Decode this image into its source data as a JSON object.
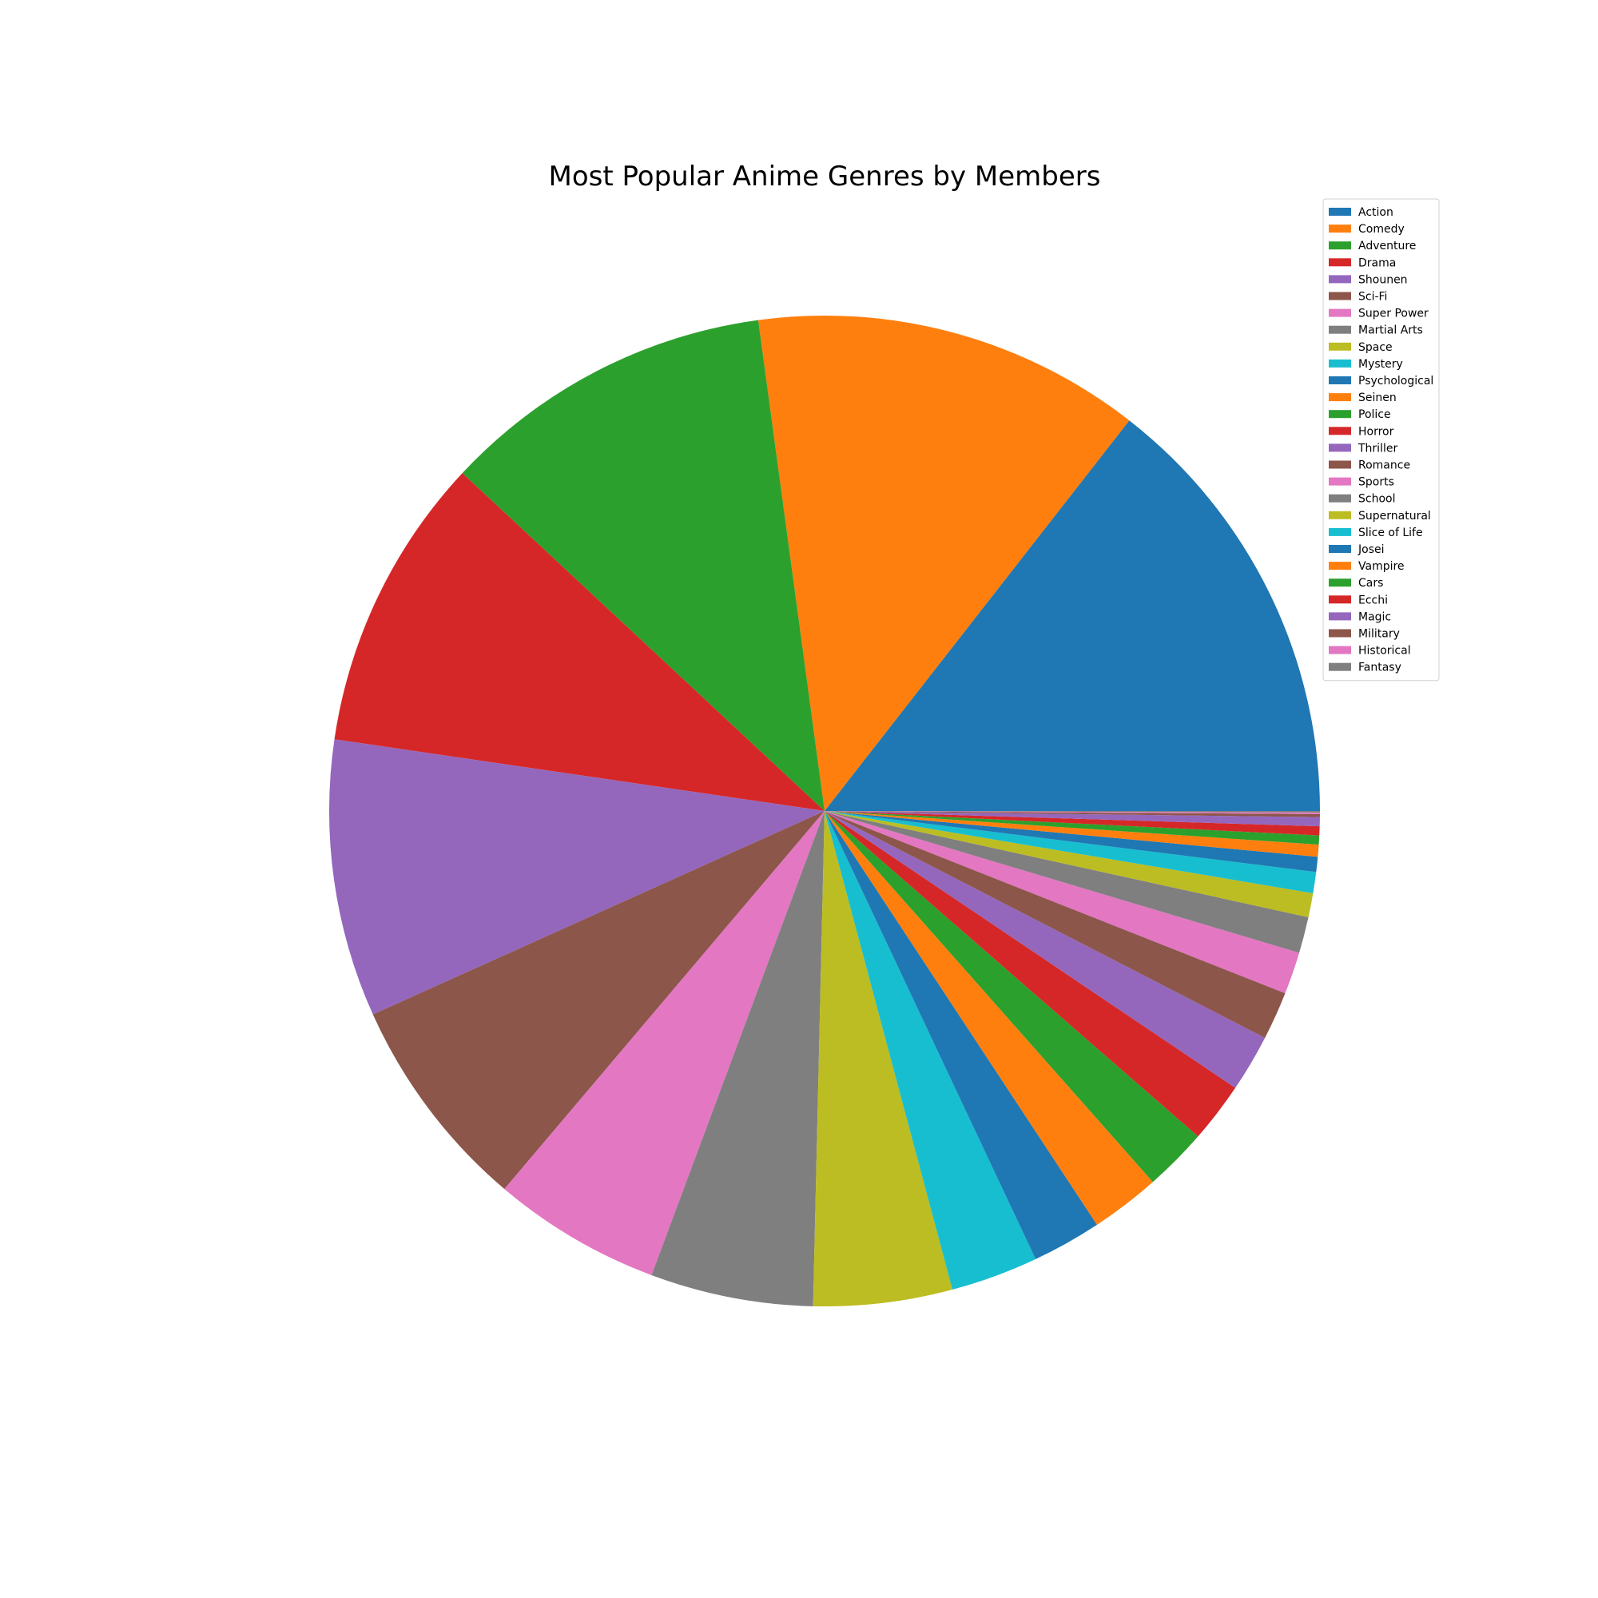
{
  "chart_data": {
    "type": "pie",
    "title": "Most Popular Anime Genres by Members",
    "start_angle_deg": 0,
    "direction": "counterclockwise",
    "legend_position": "top-right",
    "slices": [
      {
        "label": "Action",
        "value": 14.7,
        "color": "#1f77b4"
      },
      {
        "label": "Comedy",
        "value": 12.9,
        "color": "#ff7f0e"
      },
      {
        "label": "Adventure",
        "value": 11.1,
        "color": "#2ca02c"
      },
      {
        "label": "Drama",
        "value": 9.8,
        "color": "#d62728"
      },
      {
        "label": "Shounen",
        "value": 9.2,
        "color": "#9467bd"
      },
      {
        "label": "Sci-Fi",
        "value": 7.2,
        "color": "#8c564b"
      },
      {
        "label": "Super Power",
        "value": 5.6,
        "color": "#e377c2"
      },
      {
        "label": "Martial Arts",
        "value": 5.4,
        "color": "#7f7f7f"
      },
      {
        "label": "Space",
        "value": 4.6,
        "color": "#bcbd22"
      },
      {
        "label": "Mystery",
        "value": 2.9,
        "color": "#17becf"
      },
      {
        "label": "Psychological",
        "value": 2.3,
        "color": "#1f77b4"
      },
      {
        "label": "Seinen",
        "value": 2.3,
        "color": "#ff7f0e"
      },
      {
        "label": "Police",
        "value": 2.1,
        "color": "#2ca02c"
      },
      {
        "label": "Horror",
        "value": 2.0,
        "color": "#d62728"
      },
      {
        "label": "Thriller",
        "value": 1.9,
        "color": "#9467bd"
      },
      {
        "label": "Romance",
        "value": 1.6,
        "color": "#8c564b"
      },
      {
        "label": "Sports",
        "value": 1.4,
        "color": "#e377c2"
      },
      {
        "label": "School",
        "value": 1.2,
        "color": "#7f7f7f"
      },
      {
        "label": "Supernatural",
        "value": 0.8,
        "color": "#bcbd22"
      },
      {
        "label": "Slice of Life",
        "value": 0.7,
        "color": "#17becf"
      },
      {
        "label": "Josei",
        "value": 0.5,
        "color": "#1f77b4"
      },
      {
        "label": "Vampire",
        "value": 0.4,
        "color": "#ff7f0e"
      },
      {
        "label": "Cars",
        "value": 0.3,
        "color": "#2ca02c"
      },
      {
        "label": "Ecchi",
        "value": 0.3,
        "color": "#d62728"
      },
      {
        "label": "Magic",
        "value": 0.3,
        "color": "#9467bd"
      },
      {
        "label": "Military",
        "value": 0.1,
        "color": "#8c564b"
      },
      {
        "label": "Historical",
        "value": 0.05,
        "color": "#e377c2"
      },
      {
        "label": "Fantasy",
        "value": 0.05,
        "color": "#7f7f7f"
      }
    ]
  }
}
